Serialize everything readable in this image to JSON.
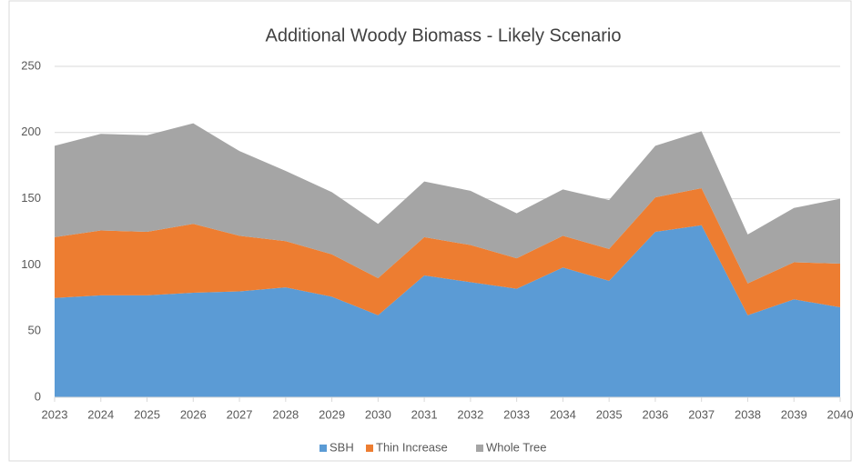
{
  "chart_data": {
    "type": "stacked_area",
    "title": "Additional Woody Biomass - Likely Scenario",
    "categories": [
      "2023",
      "2024",
      "2025",
      "2026",
      "2027",
      "2028",
      "2029",
      "2030",
      "2031",
      "2032",
      "2033",
      "2034",
      "2035",
      "2036",
      "2037",
      "2038",
      "2039",
      "2040"
    ],
    "series": [
      {
        "name": "SBH",
        "color": "#5b9bd5",
        "values": [
          75,
          77,
          77,
          79,
          80,
          83,
          76,
          62,
          92,
          87,
          82,
          98,
          88,
          125,
          130,
          62,
          74,
          68
        ]
      },
      {
        "name": "Thin Increase",
        "color": "#ed7d31",
        "values": [
          46,
          49,
          48,
          52,
          42,
          35,
          32,
          28,
          29,
          28,
          23,
          24,
          24,
          26,
          28,
          24,
          28,
          33
        ]
      },
      {
        "name": "Whole Tree",
        "color": "#a5a5a5",
        "values": [
          69,
          73,
          73,
          76,
          64,
          53,
          47,
          41,
          42,
          41,
          34,
          35,
          37,
          39,
          43,
          37,
          41,
          49
        ]
      }
    ],
    "ylim": [
      0,
      250
    ],
    "yticks": [
      0,
      50,
      100,
      150,
      200,
      250
    ],
    "grid": true,
    "legend": "bottom"
  }
}
